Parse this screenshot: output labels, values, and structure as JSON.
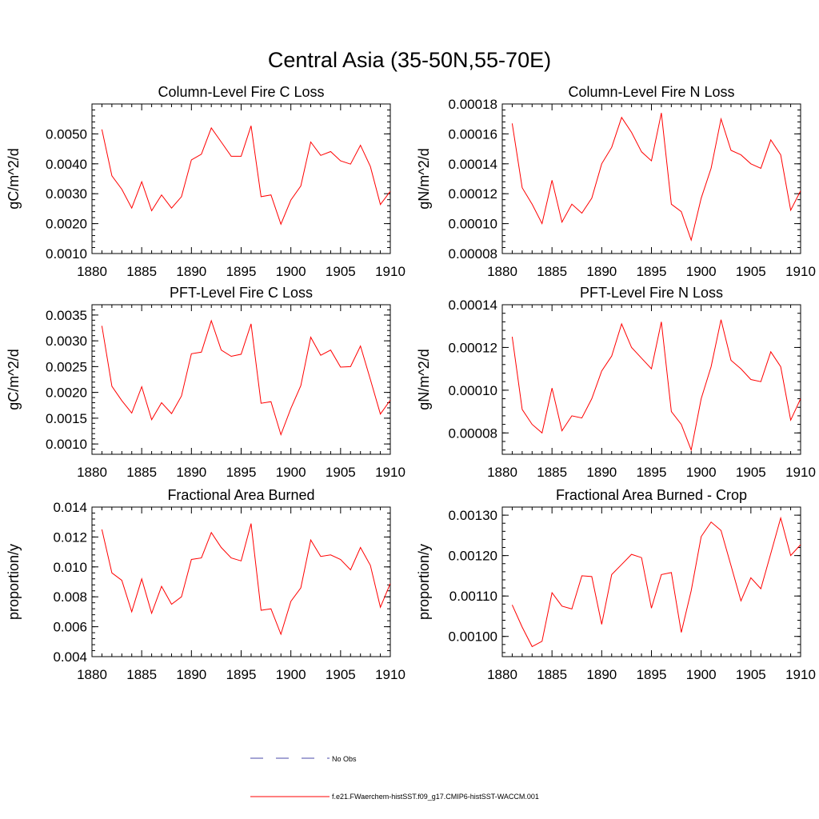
{
  "figure": {
    "title": "Central Asia (35-50N,55-70E)",
    "line_color": "#ff0000",
    "obs_color": "#4a4aa8"
  },
  "legend": {
    "obs_label": "No Obs",
    "model_label": "f.e21.FWaerchem-histSST.f09_g17.CMIP6-histSST-WACCM.001"
  },
  "chart_data": [
    {
      "type": "line",
      "title": "Column-Level Fire C Loss",
      "ylabel": "gC/m^2/d",
      "xlim": [
        1880,
        1910
      ],
      "ylim": [
        0.001,
        0.006
      ],
      "xticks": [
        1880,
        1885,
        1890,
        1895,
        1900,
        1905,
        1910
      ],
      "yticks": [
        0.001,
        0.002,
        0.003,
        0.004,
        0.005
      ],
      "ytick_labels": [
        "0.0010",
        "0.0020",
        "0.0030",
        "0.0040",
        "0.0050"
      ],
      "x": [
        1881,
        1882,
        1883,
        1884,
        1885,
        1886,
        1887,
        1888,
        1889,
        1890,
        1891,
        1892,
        1893,
        1894,
        1895,
        1896,
        1897,
        1898,
        1899,
        1900,
        1901,
        1902,
        1903,
        1904,
        1905,
        1906,
        1907,
        1908,
        1909,
        1910
      ],
      "series": [
        {
          "values": [
            0.00515,
            0.0036,
            0.00315,
            0.00252,
            0.0034,
            0.00243,
            0.00296,
            0.00252,
            0.0029,
            0.00413,
            0.00432,
            0.0052,
            0.00473,
            0.00425,
            0.00425,
            0.00527,
            0.0029,
            0.00296,
            0.00198,
            0.00279,
            0.00326,
            0.00473,
            0.00428,
            0.00441,
            0.0041,
            0.00399,
            0.00462,
            0.00391,
            0.00264,
            0.00308
          ]
        }
      ]
    },
    {
      "type": "line",
      "title": "Column-Level Fire N Loss",
      "ylabel": "gN/m^2/d",
      "xlim": [
        1880,
        1910
      ],
      "ylim": [
        8e-05,
        0.00018
      ],
      "xticks": [
        1880,
        1885,
        1890,
        1895,
        1900,
        1905,
        1910
      ],
      "yticks": [
        8e-05,
        0.0001,
        0.00012,
        0.00014,
        0.00016,
        0.00018
      ],
      "ytick_labels": [
        "0.00008",
        "0.00010",
        "0.00012",
        "0.00014",
        "0.00016",
        "0.00018"
      ],
      "x": [
        1881,
        1882,
        1883,
        1884,
        1885,
        1886,
        1887,
        1888,
        1889,
        1890,
        1891,
        1892,
        1893,
        1894,
        1895,
        1896,
        1897,
        1898,
        1899,
        1900,
        1901,
        1902,
        1903,
        1904,
        1905,
        1906,
        1907,
        1908,
        1909,
        1910
      ],
      "series": [
        {
          "values": [
            0.000167,
            0.000124,
            0.000113,
            0.0001,
            0.000129,
            0.000101,
            0.000113,
            0.000107,
            0.000117,
            0.00014,
            0.000151,
            0.000171,
            0.000161,
            0.000148,
            0.000142,
            0.000174,
            0.000113,
            0.000108,
            8.9e-05,
            0.000117,
            0.000137,
            0.00017,
            0.000149,
            0.000146,
            0.00014,
            0.000137,
            0.000156,
            0.000146,
            0.000109,
            0.000122
          ]
        }
      ]
    },
    {
      "type": "line",
      "title": "PFT-Level Fire C Loss",
      "ylabel": "gC/m^2/d",
      "xlim": [
        1880,
        1910
      ],
      "ylim": [
        0.0008,
        0.0037
      ],
      "xticks": [
        1880,
        1885,
        1890,
        1895,
        1900,
        1905,
        1910
      ],
      "yticks": [
        0.001,
        0.0015,
        0.002,
        0.0025,
        0.003,
        0.0035
      ],
      "ytick_labels": [
        "0.0010",
        "0.0015",
        "0.0020",
        "0.0025",
        "0.0030",
        "0.0035"
      ],
      "x": [
        1881,
        1882,
        1883,
        1884,
        1885,
        1886,
        1887,
        1888,
        1889,
        1890,
        1891,
        1892,
        1893,
        1894,
        1895,
        1896,
        1897,
        1898,
        1899,
        1900,
        1901,
        1902,
        1903,
        1904,
        1905,
        1906,
        1907,
        1908,
        1909,
        1910
      ],
      "series": [
        {
          "values": [
            0.00329,
            0.00212,
            0.00184,
            0.0016,
            0.00211,
            0.00147,
            0.0018,
            0.00159,
            0.00193,
            0.00275,
            0.00278,
            0.00339,
            0.00282,
            0.0027,
            0.00274,
            0.00333,
            0.00179,
            0.00182,
            0.00118,
            0.00169,
            0.00213,
            0.00307,
            0.00272,
            0.00282,
            0.00249,
            0.0025,
            0.0029,
            0.00225,
            0.00158,
            0.00185
          ]
        }
      ]
    },
    {
      "type": "line",
      "title": "PFT-Level Fire N Loss",
      "ylabel": "gN/m^2/d",
      "xlim": [
        1880,
        1910
      ],
      "ylim": [
        7e-05,
        0.00014
      ],
      "xticks": [
        1880,
        1885,
        1890,
        1895,
        1900,
        1905,
        1910
      ],
      "yticks": [
        8e-05,
        0.0001,
        0.00012,
        0.00014
      ],
      "ytick_labels": [
        "0.00008",
        "0.00010",
        "0.00012",
        "0.00014"
      ],
      "x": [
        1881,
        1882,
        1883,
        1884,
        1885,
        1886,
        1887,
        1888,
        1889,
        1890,
        1891,
        1892,
        1893,
        1894,
        1895,
        1896,
        1897,
        1898,
        1899,
        1900,
        1901,
        1902,
        1903,
        1904,
        1905,
        1906,
        1907,
        1908,
        1909,
        1910
      ],
      "series": [
        {
          "values": [
            0.000125,
            9.1e-05,
            8.4e-05,
            8e-05,
            0.000101,
            8.1e-05,
            8.8e-05,
            8.7e-05,
            9.6e-05,
            0.000109,
            0.000116,
            0.000131,
            0.00012,
            0.000115,
            0.00011,
            0.000132,
            9e-05,
            8.4e-05,
            7.2e-05,
            9.6e-05,
            0.000111,
            0.000133,
            0.000114,
            0.00011,
            0.000105,
            0.000104,
            0.000118,
            0.000111,
            8.6e-05,
            9.6e-05
          ]
        }
      ]
    },
    {
      "type": "line",
      "title": "Fractional Area Burned",
      "ylabel": "proportion/y",
      "xlim": [
        1880,
        1910
      ],
      "ylim": [
        0.004,
        0.014
      ],
      "xticks": [
        1880,
        1885,
        1890,
        1895,
        1900,
        1905,
        1910
      ],
      "yticks": [
        0.004,
        0.006,
        0.008,
        0.01,
        0.012,
        0.014
      ],
      "ytick_labels": [
        "0.004",
        "0.006",
        "0.008",
        "0.010",
        "0.012",
        "0.014"
      ],
      "x": [
        1881,
        1882,
        1883,
        1884,
        1885,
        1886,
        1887,
        1888,
        1889,
        1890,
        1891,
        1892,
        1893,
        1894,
        1895,
        1896,
        1897,
        1898,
        1899,
        1900,
        1901,
        1902,
        1903,
        1904,
        1905,
        1906,
        1907,
        1908,
        1909,
        1910
      ],
      "series": [
        {
          "values": [
            0.0125,
            0.0096,
            0.0091,
            0.007,
            0.0092,
            0.0069,
            0.0087,
            0.0075,
            0.008,
            0.0105,
            0.0106,
            0.0123,
            0.0113,
            0.0106,
            0.0104,
            0.0129,
            0.0071,
            0.0072,
            0.0055,
            0.0077,
            0.0086,
            0.0118,
            0.0107,
            0.0108,
            0.0105,
            0.0098,
            0.0113,
            0.0101,
            0.0073,
            0.0089
          ]
        }
      ]
    },
    {
      "type": "line",
      "title": "Fractional Area Burned - Crop",
      "ylabel": "proportion/y",
      "xlim": [
        1880,
        1910
      ],
      "ylim": [
        0.00095,
        0.00132
      ],
      "xticks": [
        1880,
        1885,
        1890,
        1895,
        1900,
        1905,
        1910
      ],
      "yticks": [
        0.001,
        0.0011,
        0.0012,
        0.0013
      ],
      "ytick_labels": [
        "0.00100",
        "0.00110",
        "0.00120",
        "0.00130"
      ],
      "x": [
        1881,
        1882,
        1883,
        1884,
        1885,
        1886,
        1887,
        1888,
        1889,
        1890,
        1891,
        1892,
        1893,
        1894,
        1895,
        1896,
        1897,
        1898,
        1899,
        1900,
        1901,
        1902,
        1903,
        1904,
        1905,
        1906,
        1907,
        1908,
        1909,
        1910
      ],
      "series": [
        {
          "values": [
            0.001078,
            0.001023,
            0.000975,
            0.000988,
            0.001108,
            0.001075,
            0.001068,
            0.00115,
            0.001148,
            0.00103,
            0.001153,
            0.001178,
            0.001203,
            0.001195,
            0.00107,
            0.001153,
            0.001158,
            0.00101,
            0.001113,
            0.001247,
            0.001283,
            0.001262,
            0.001175,
            0.001088,
            0.001145,
            0.001118,
            0.001205,
            0.001293,
            0.0012,
            0.001227
          ]
        }
      ]
    }
  ]
}
